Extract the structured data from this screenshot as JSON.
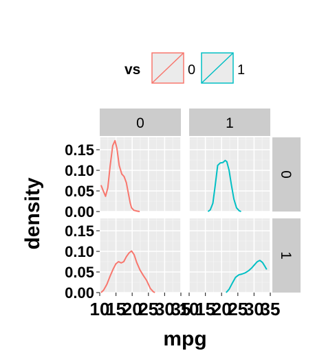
{
  "legend": {
    "title": "vs",
    "entries": [
      {
        "label": "0",
        "color": "#F8766D"
      },
      {
        "label": "1",
        "color": "#00BFC4"
      }
    ],
    "placement": "top"
  },
  "chart_data": {
    "type": "area",
    "kind": "faceted density plot",
    "xlabel": "mpg",
    "ylabel": "density",
    "xlim": [
      10,
      35
    ],
    "ylim": [
      0,
      0.18
    ],
    "xticks": [
      10,
      15,
      20,
      25,
      30,
      35
    ],
    "xtick_labels": [
      "10",
      "15",
      "20",
      "25",
      "30",
      "35"
    ],
    "yticks": [
      0,
      0.05,
      0.1,
      0.15
    ],
    "ytick_labels": [
      "0.00",
      "0.05",
      "0.10",
      "0.15"
    ],
    "grid": true,
    "col_strip_labels": [
      "0",
      "1"
    ],
    "row_strip_labels": [
      "0",
      "1"
    ],
    "facets": [
      {
        "row": 0,
        "col": 0,
        "series": "0",
        "color": "#F8766D",
        "x": [
          10.4,
          11.0,
          11.8,
          12.5,
          13.2,
          14.0,
          14.7,
          15.3,
          16.0,
          16.8,
          17.5,
          18.2,
          18.9,
          19.4,
          19.8,
          20.5,
          21.5,
          22.3
        ],
        "y": [
          0.064,
          0.052,
          0.037,
          0.058,
          0.11,
          0.16,
          0.172,
          0.153,
          0.112,
          0.091,
          0.085,
          0.07,
          0.041,
          0.02,
          0.009,
          0.003,
          0.001,
          0.0
        ]
      },
      {
        "row": 0,
        "col": 1,
        "series": "1",
        "color": "#00BFC4",
        "x": [
          15.8,
          16.5,
          17.3,
          18.0,
          18.8,
          19.6,
          20.4,
          21.1,
          21.6,
          22.3,
          23.0,
          23.8,
          24.6,
          25.4,
          26.0
        ],
        "y": [
          0.0,
          0.004,
          0.02,
          0.062,
          0.112,
          0.118,
          0.119,
          0.124,
          0.121,
          0.1,
          0.065,
          0.03,
          0.009,
          0.002,
          0.0
        ]
      },
      {
        "row": 1,
        "col": 0,
        "series": "0",
        "color": "#F8766D",
        "x": [
          10.4,
          11.2,
          12.2,
          13.2,
          14.2,
          15.0,
          15.8,
          16.6,
          17.4,
          18.2,
          19.0,
          19.8,
          20.6,
          21.4,
          22.4,
          23.4,
          24.4,
          25.6,
          26.5,
          27.0
        ],
        "y": [
          0.0,
          0.006,
          0.02,
          0.04,
          0.058,
          0.07,
          0.075,
          0.072,
          0.075,
          0.087,
          0.096,
          0.101,
          0.092,
          0.073,
          0.055,
          0.042,
          0.03,
          0.01,
          0.002,
          0.0
        ]
      },
      {
        "row": 1,
        "col": 1,
        "series": "1",
        "color": "#00BFC4",
        "x": [
          21.4,
          22.3,
          23.3,
          24.3,
          25.3,
          26.3,
          27.3,
          28.3,
          29.3,
          30.2,
          31.0,
          31.8,
          32.6,
          33.4,
          33.9
        ],
        "y": [
          0.0,
          0.008,
          0.023,
          0.037,
          0.043,
          0.045,
          0.048,
          0.053,
          0.06,
          0.068,
          0.075,
          0.078,
          0.073,
          0.063,
          0.056
        ]
      }
    ]
  }
}
